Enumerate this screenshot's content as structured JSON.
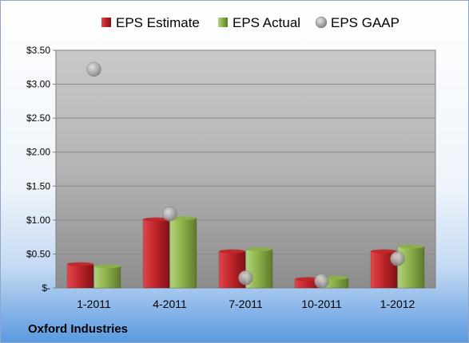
{
  "chart_data": {
    "type": "bar",
    "categories": [
      "1-2011",
      "4-2011",
      "7-2011",
      "10-2011",
      "1-2012"
    ],
    "series": [
      {
        "name": "EPS Estimate",
        "type": "bar",
        "values": [
          0.35,
          1.01,
          0.54,
          0.13,
          0.54
        ],
        "color": "#c0252a"
      },
      {
        "name": "EPS Actual",
        "type": "bar",
        "values": [
          0.32,
          1.03,
          0.57,
          0.15,
          0.61
        ],
        "color": "#8cb14a"
      },
      {
        "name": "EPS GAAP",
        "type": "scatter",
        "values": [
          3.22,
          1.09,
          0.15,
          0.1,
          0.43
        ],
        "color": "#a8a8a8"
      }
    ],
    "yticks": [
      "$-",
      "$0.50",
      "$1.00",
      "$1.50",
      "$2.00",
      "$2.50",
      "$3.00",
      "$3.50"
    ],
    "ylim": [
      0,
      3.5
    ],
    "grid": true,
    "legend": "top",
    "company": "Oxford Industries"
  }
}
